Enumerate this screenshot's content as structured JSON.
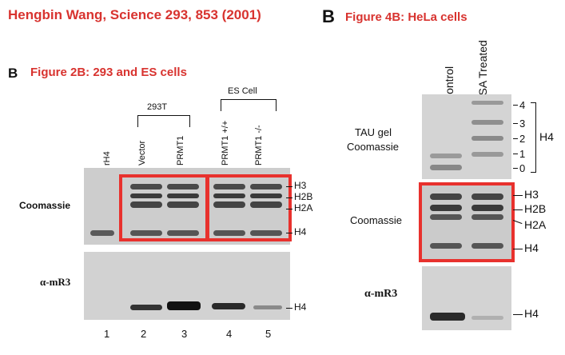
{
  "citation": "Hengbin Wang, Science 293, 853 (2001)",
  "left": {
    "panel_letter": "B",
    "title": "Figure 2B: 293 and ES cells",
    "groups": [
      "293T",
      "ES Cell"
    ],
    "lanes": [
      "rH4",
      "Vector",
      "PRMT1",
      "PRMT1 +/+",
      "PRMT1 -/-"
    ],
    "lane_numbers": [
      "1",
      "2",
      "3",
      "4",
      "5"
    ],
    "row_coomassie": "Coomassie",
    "row_antibody": "α-mR3",
    "bands_top": [
      "H3",
      "H2B",
      "H2A",
      "H4"
    ],
    "bands_bottom": [
      "H4"
    ]
  },
  "right": {
    "panel_letter": "B",
    "title": "Figure 4B: HeLa cells",
    "lanes": [
      "Control",
      "TSA Treated"
    ],
    "row_tau_line1": "TAU gel",
    "row_tau_line2": "Coomassie",
    "tau_ticks": [
      "4",
      "3",
      "2",
      "1",
      "0"
    ],
    "tau_group": "H4",
    "row_coomassie": "Coomassie",
    "bands_mid": [
      "H3",
      "H2B",
      "H2A",
      "H4"
    ],
    "row_antibody": "α-mR3",
    "bands_bottom": [
      "H4"
    ]
  },
  "colors": {
    "highlight": "#e8312d",
    "title": "#d8332f"
  }
}
